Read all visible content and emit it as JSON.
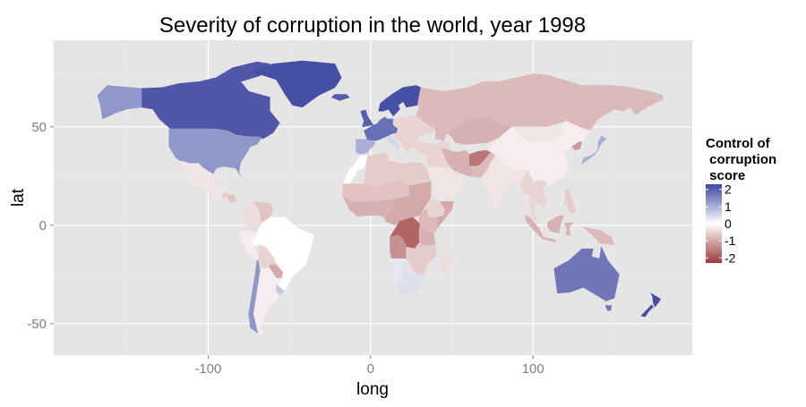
{
  "chart_data": {
    "type": "choropleth-map",
    "title": "Severity of corruption in the world, year 1998",
    "xlabel": "long",
    "ylabel": "lat",
    "x_ticks": [
      -100,
      0,
      100
    ],
    "y_ticks": [
      50,
      0,
      -50
    ],
    "xlim": [
      -195,
      198
    ],
    "ylim": [
      -66,
      94
    ],
    "grid": true,
    "legend": {
      "title_lines": [
        "Control of",
        " corruption",
        " score"
      ],
      "placement": "right",
      "ticks": [
        2,
        1,
        0,
        -1,
        -2
      ],
      "range": [
        -2.3,
        2.3
      ],
      "colors": {
        "high": "#3d47a0",
        "mid": "#ffffff",
        "low": "#9b3a3a"
      }
    },
    "regions": [
      {
        "name": "Canada",
        "score": 2.1
      },
      {
        "name": "United States",
        "score": 1.3
      },
      {
        "name": "Mexico",
        "score": -0.3
      },
      {
        "name": "Guatemala",
        "score": -0.6
      },
      {
        "name": "Honduras",
        "score": -0.7
      },
      {
        "name": "Colombia",
        "score": -0.4
      },
      {
        "name": "Venezuela",
        "score": -0.7
      },
      {
        "name": "Brazil",
        "score": 0.0
      },
      {
        "name": "Peru",
        "score": -0.2
      },
      {
        "name": "Bolivia",
        "score": -0.5
      },
      {
        "name": "Paraguay",
        "score": -1.0
      },
      {
        "name": "Chile",
        "score": 1.3
      },
      {
        "name": "Argentina",
        "score": -0.2
      },
      {
        "name": "Uruguay",
        "score": 0.7
      },
      {
        "name": "Greenland",
        "score": 2.2
      },
      {
        "name": "Alaska",
        "score": 1.3
      },
      {
        "name": "Iceland",
        "score": 2.0
      },
      {
        "name": "United Kingdom",
        "score": 2.0
      },
      {
        "name": "Scandinavia",
        "score": 2.2
      },
      {
        "name": "Western Europe",
        "score": 1.8
      },
      {
        "name": "Spain",
        "score": 1.0
      },
      {
        "name": "Italy",
        "score": 0.5
      },
      {
        "name": "Eastern Europe",
        "score": -0.5
      },
      {
        "name": "Russia",
        "score": -0.8
      },
      {
        "name": "Kazakhstan",
        "score": -0.9
      },
      {
        "name": "Mongolia",
        "score": -0.3
      },
      {
        "name": "China",
        "score": -0.2
      },
      {
        "name": "Japan",
        "score": 1.0
      },
      {
        "name": "South Korea",
        "score": 0.3
      },
      {
        "name": "North Korea",
        "score": -1.2
      },
      {
        "name": "Middle East",
        "score": -0.5
      },
      {
        "name": "Saudi Arabia",
        "score": -0.3
      },
      {
        "name": "Iran",
        "score": -0.9
      },
      {
        "name": "Afghanistan",
        "score": -1.6
      },
      {
        "name": "India",
        "score": -0.3
      },
      {
        "name": "Pakistan",
        "score": -0.8
      },
      {
        "name": "Southeast Asia",
        "score": -0.5
      },
      {
        "name": "Indonesia",
        "score": -0.9
      },
      {
        "name": "Papua New Guinea",
        "score": -0.8
      },
      {
        "name": "Philippines",
        "score": -0.6
      },
      {
        "name": "North Africa",
        "score": -0.6
      },
      {
        "name": "Morocco",
        "score": 0.0
      },
      {
        "name": "Sahel",
        "score": -0.7
      },
      {
        "name": "West Africa",
        "score": -0.9
      },
      {
        "name": "Central Africa",
        "score": -1.0
      },
      {
        "name": "DR Congo",
        "score": -1.8
      },
      {
        "name": "East Africa",
        "score": -0.8
      },
      {
        "name": "Somalia",
        "score": -1.0
      },
      {
        "name": "Ethiopia",
        "score": -0.5
      },
      {
        "name": "Tanzania",
        "score": -0.9
      },
      {
        "name": "Angola",
        "score": -1.3
      },
      {
        "name": "Southern Africa",
        "score": -0.6
      },
      {
        "name": "Namibia",
        "score": 0.3
      },
      {
        "name": "South Africa",
        "score": 0.4
      },
      {
        "name": "Madagascar",
        "score": -0.4
      },
      {
        "name": "Australia",
        "score": 1.7
      },
      {
        "name": "New Zealand",
        "score": 2.2
      }
    ]
  }
}
